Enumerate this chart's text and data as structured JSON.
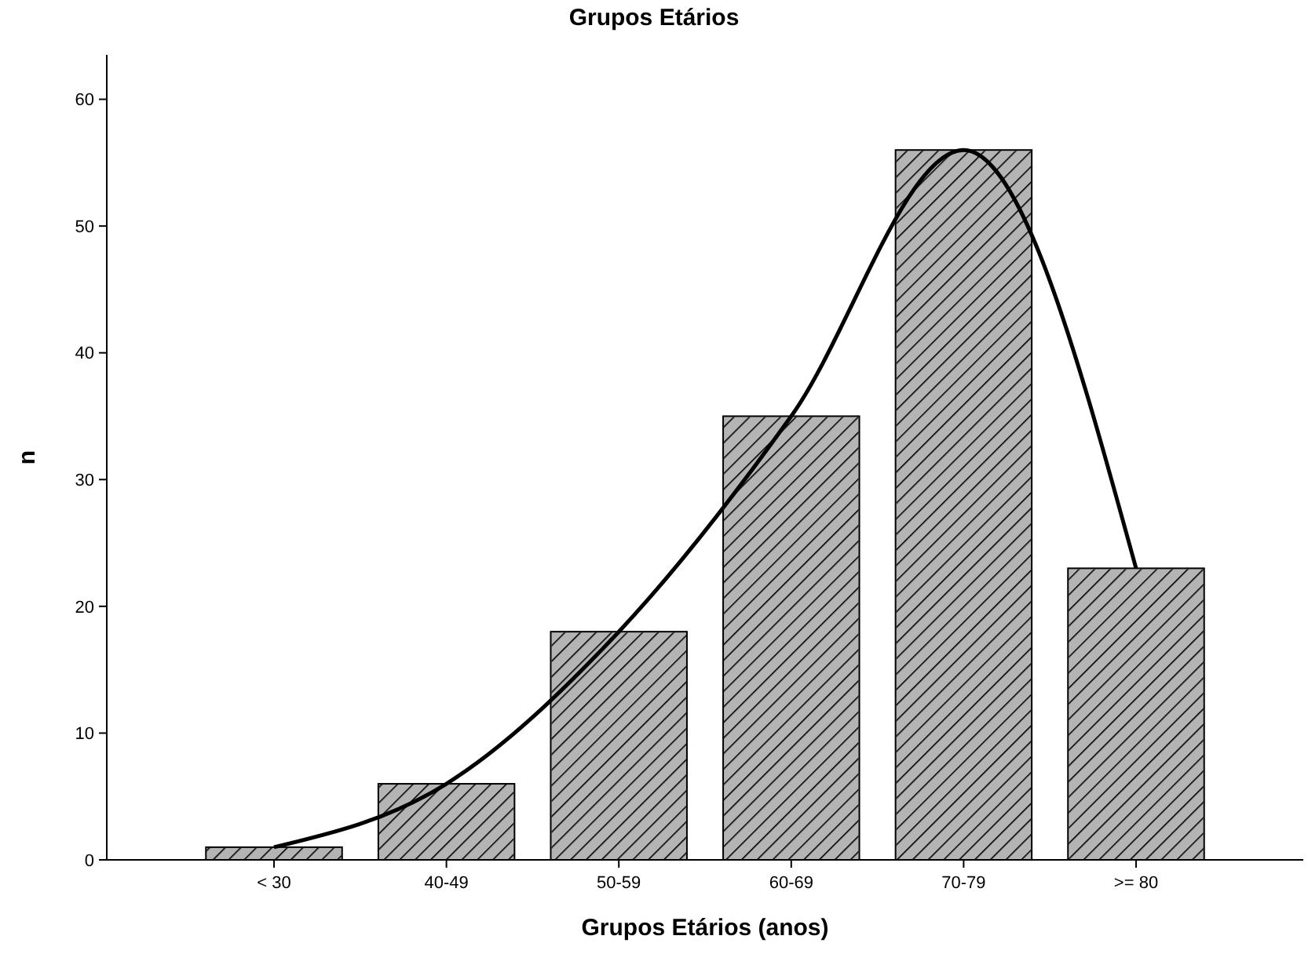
{
  "chart_data": {
    "type": "bar",
    "title": "Grupos Etários",
    "xlabel": "Grupos Etários (anos)",
    "ylabel": "n",
    "categories": [
      "< 30",
      "40-49",
      "50-59",
      "60-69",
      "70-79",
      ">= 80"
    ],
    "series": [
      {
        "color": "#b4b4b4",
        "values": [
          1,
          6,
          18,
          35,
          56,
          23
        ]
      },
      {
        "type": "line",
        "color": "#000000",
        "values": [
          1,
          6,
          18,
          35,
          56,
          23
        ]
      }
    ],
    "ylim": [
      0,
      63.5
    ],
    "yticks": [
      0,
      10,
      20,
      30,
      40,
      50,
      60
    ],
    "grid": false,
    "line_style": "solid",
    "marker": "none"
  }
}
